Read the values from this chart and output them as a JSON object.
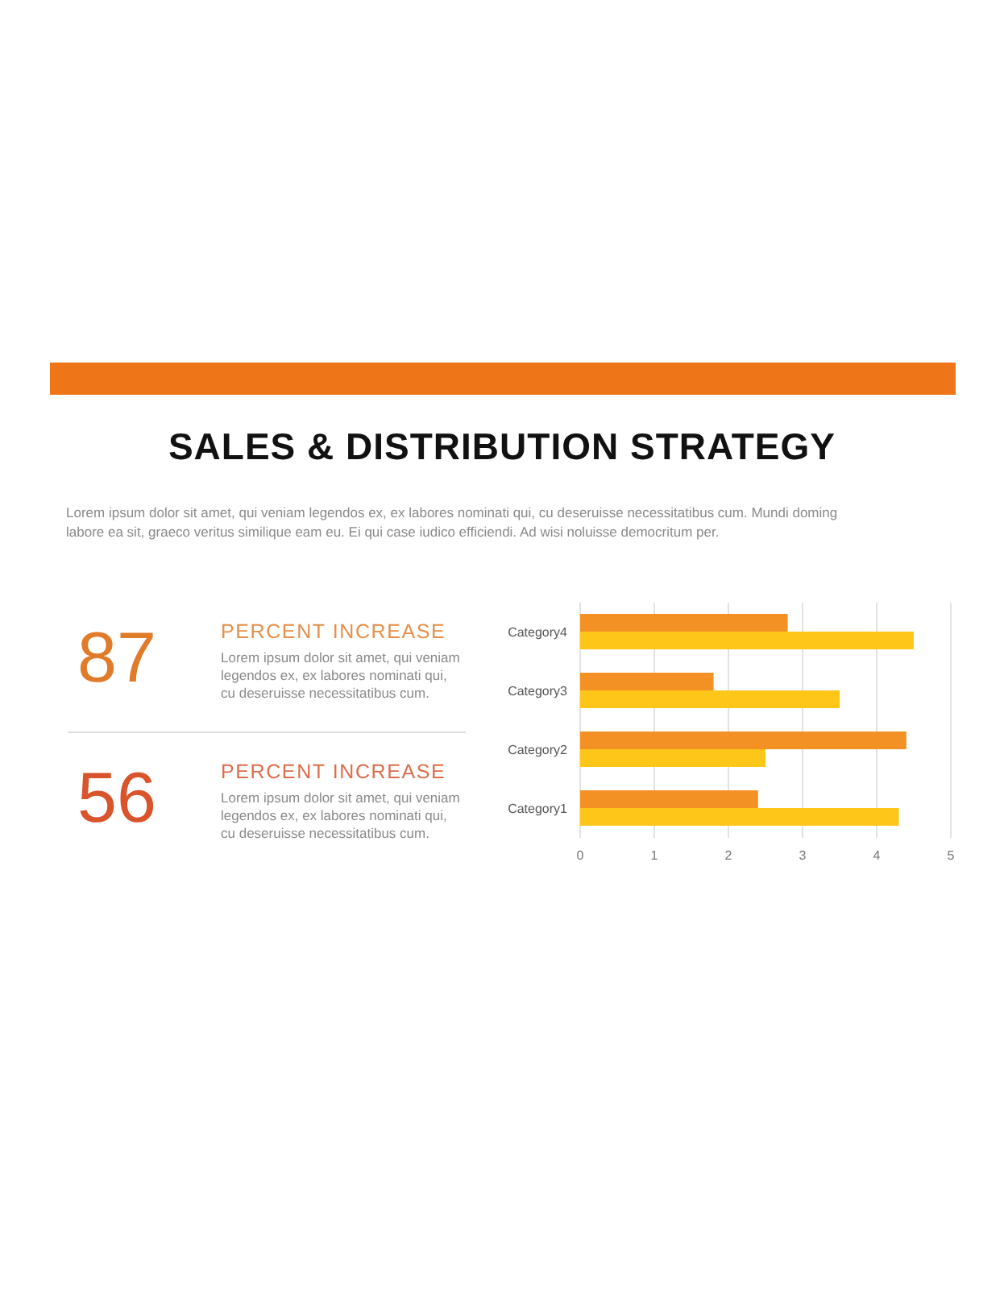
{
  "chart_data": [
    {
      "type": "other",
      "title": "SALES & DISTRIBUTION STRATEGY",
      "subtitle": "Lorem ipsum dolor sit amet, qui veniam legendos ex, ex labores nominati qui, cu deseruisse necessitatibus cum. Mundi doming labore ea sit, graeco veritus similique eam eu. Ei qui case iudico efficiendi. Ad wisi noluisse democritum per.",
      "categories": [
        "PERCENT INCREASE",
        "PERCENT INCREASE"
      ],
      "values": [
        87,
        56
      ],
      "data_labels": true,
      "colors": [
        "#e07b2a",
        "#d9532b"
      ],
      "annotations": [
        "Lorem ipsum dolor sit amet, qui veniam legendos ex, ex labores nominati qui, cu deseruisse necessitatibus cum.",
        "Lorem ipsum dolor sit amet, qui veniam legendos ex, ex labores nominati qui, cu deseruisse necessitatibus cum."
      ]
    },
    {
      "type": "bar",
      "orientation": "horizontal",
      "categories": [
        "Category4",
        "Category3",
        "Category2",
        "Category1"
      ],
      "series": [
        {
          "color": "#f39125",
          "values": [
            2.8,
            1.8,
            4.4,
            2.4
          ]
        },
        {
          "color": "#ffc61a",
          "values": [
            4.5,
            3.5,
            2.5,
            4.3
          ]
        }
      ],
      "xlim": [
        0,
        5
      ],
      "xticks": [
        0,
        1,
        2,
        3,
        4,
        5
      ],
      "grid": "x",
      "legend": false
    }
  ]
}
